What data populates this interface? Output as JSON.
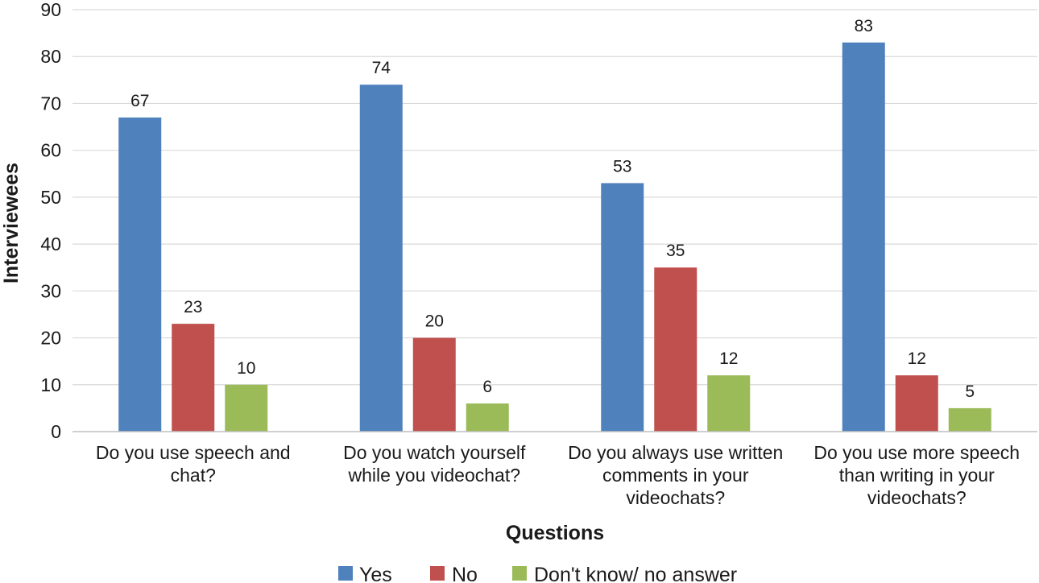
{
  "chart_data": {
    "type": "bar",
    "title": "",
    "xlabel": "Questions",
    "ylabel": "Interviewees",
    "ylim": [
      0,
      90
    ],
    "yticks": [
      0,
      10,
      20,
      30,
      40,
      50,
      60,
      70,
      80,
      90
    ],
    "grid": true,
    "legend_position": "bottom",
    "categories": [
      [
        "Do you use speech and",
        "chat?"
      ],
      [
        "Do you watch yourself",
        "while you videochat?"
      ],
      [
        "Do you always use written",
        "comments in your",
        "videochats?"
      ],
      [
        "Do you use more speech",
        "than writing in your",
        "videochats?"
      ]
    ],
    "series": [
      {
        "name": "Yes",
        "color": "#4f81bd",
        "values": [
          67,
          74,
          53,
          83
        ]
      },
      {
        "name": "No",
        "color": "#c0504d",
        "values": [
          23,
          20,
          35,
          12
        ]
      },
      {
        "name": "Don't know/ no answer",
        "color": "#9bbb59",
        "values": [
          10,
          6,
          12,
          5
        ]
      }
    ]
  }
}
